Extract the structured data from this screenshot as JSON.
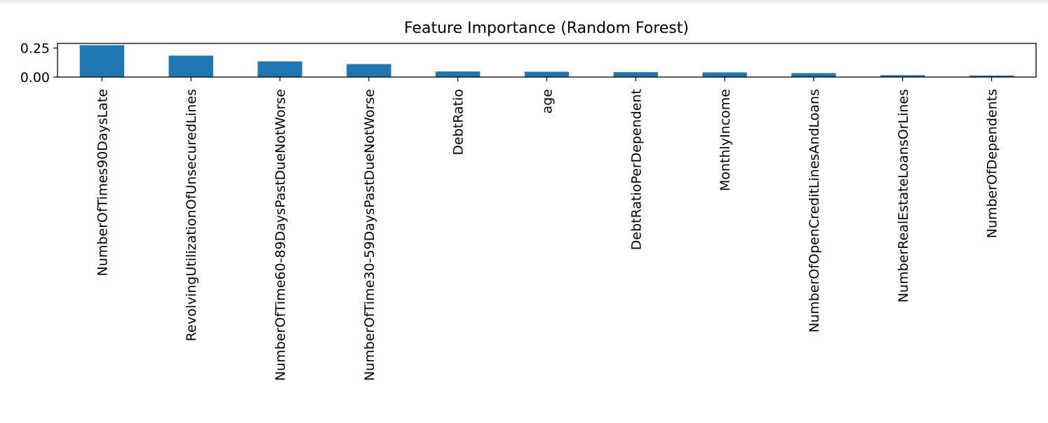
{
  "chart_data": {
    "type": "bar",
    "title": "Feature Importance (Random Forest)",
    "xlabel": "",
    "ylabel": "",
    "ylim": [
      0,
      0.29
    ],
    "yticks": [
      0.0,
      0.25
    ],
    "ytick_labels": [
      "0.00",
      "0.25"
    ],
    "grid": false,
    "bar_color": "#1f77b4",
    "categories": [
      "NumberOfTimes90DaysLate",
      "RevolvingUtilizationOfUnsecuredLines",
      "NumberOfTime60-89DaysPastDueNotWorse",
      "NumberOfTime30-59DaysPastDueNotWorse",
      "DebtRatio",
      "age",
      "DebtRatioPerDependent",
      "MonthlyIncome",
      "NumberOfOpenCreditLinesAndLoans",
      "NumberRealEstateLoansOrLines",
      "NumberOfDependents"
    ],
    "values": [
      0.275,
      0.185,
      0.135,
      0.112,
      0.048,
      0.046,
      0.042,
      0.04,
      0.034,
      0.016,
      0.013
    ]
  }
}
